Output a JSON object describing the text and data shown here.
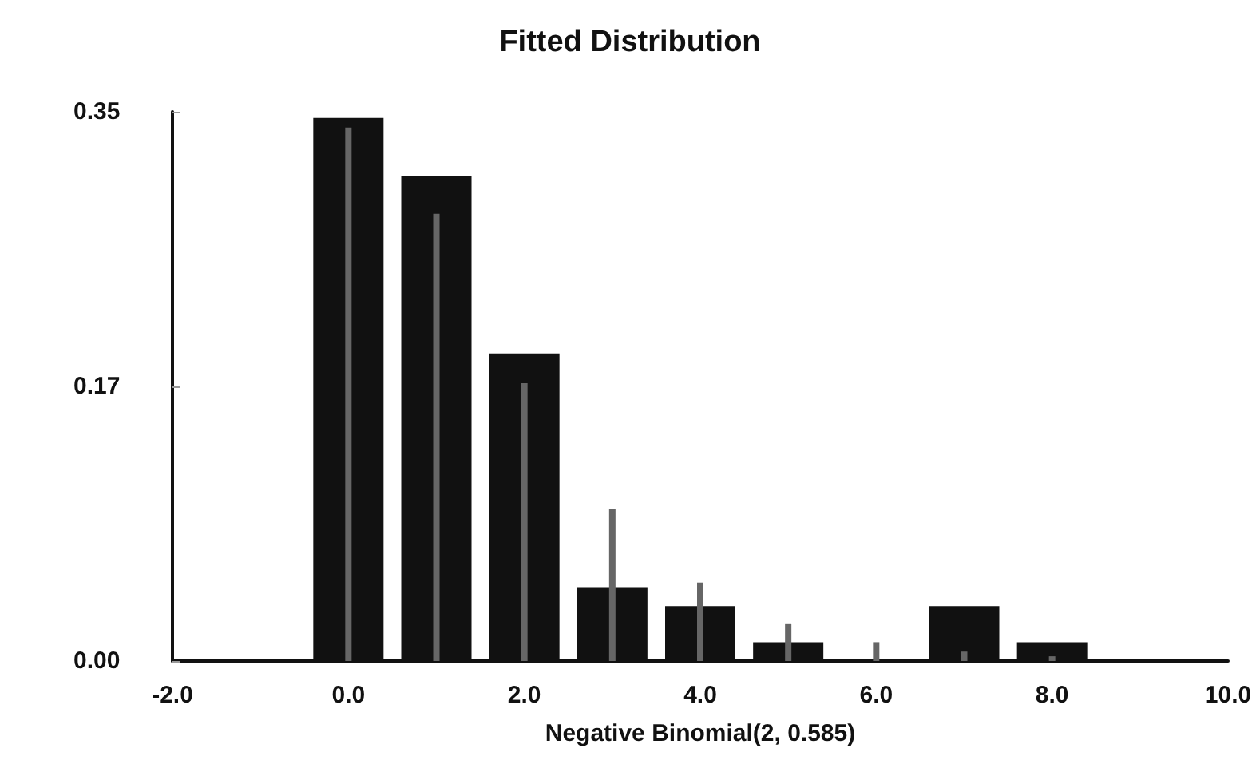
{
  "chart_data": {
    "type": "bar",
    "title": "Fitted Distribution",
    "xlabel": "Negative Binomial(2, 0.585)",
    "series": [
      {
        "color": "#111111",
        "x": [
          0,
          1,
          2,
          3,
          4,
          5,
          6,
          7,
          8
        ],
        "values": [
          0.346,
          0.309,
          0.196,
          0.047,
          0.035,
          0.012,
          0,
          0.035,
          0.012
        ]
      },
      {
        "color": "#666666",
        "x": [
          0,
          1,
          2,
          3,
          4,
          5,
          6,
          7,
          8
        ],
        "values": [
          0.34,
          0.285,
          0.177,
          0.097,
          0.05,
          0.024,
          0.012,
          0.006,
          0.003
        ]
      }
    ],
    "xlim": [
      -2,
      10
    ],
    "xticks": [
      {
        "value": -2,
        "label": "-2.0"
      },
      {
        "value": 0,
        "label": "0.0"
      },
      {
        "value": 2,
        "label": "2.0"
      },
      {
        "value": 4,
        "label": "4.0"
      },
      {
        "value": 6,
        "label": "6.0"
      },
      {
        "value": 8,
        "label": "8.0"
      },
      {
        "value": 10,
        "label": "10.0"
      }
    ],
    "ylim": [
      0,
      0.35
    ],
    "yticks": [
      {
        "value": 0,
        "label": "0.00"
      },
      {
        "value": 0.175,
        "label": "0.17"
      },
      {
        "value": 0.35,
        "label": "0.35"
      }
    ]
  }
}
